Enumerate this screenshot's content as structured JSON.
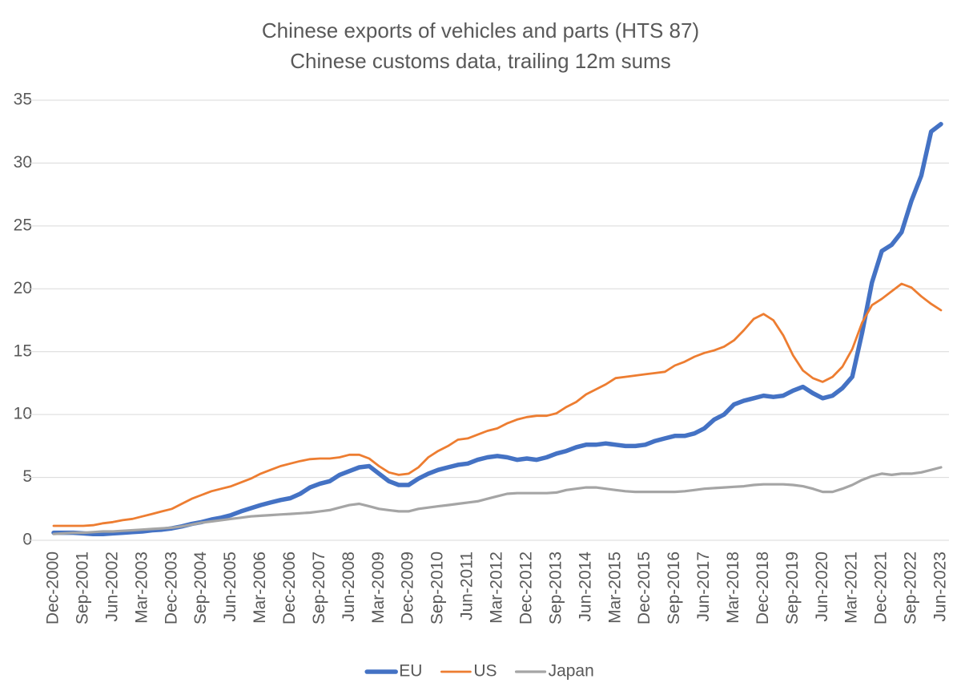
{
  "chart_data": {
    "type": "line",
    "title": "Chinese exports of vehicles and parts (HTS 87)",
    "subtitle": "Chinese customs data, trailing 12m sums",
    "categories": [
      "Dec-2000",
      null,
      null,
      "Sep-2001",
      null,
      null,
      "Jun-2002",
      null,
      null,
      "Mar-2003",
      null,
      null,
      "Dec-2003",
      null,
      null,
      "Sep-2004",
      null,
      null,
      "Jun-2005",
      null,
      null,
      "Mar-2006",
      null,
      null,
      "Dec-2006",
      null,
      null,
      "Sep-2007",
      null,
      null,
      "Jun-2008",
      null,
      null,
      "Mar-2009",
      null,
      null,
      "Dec-2009",
      null,
      null,
      "Sep-2010",
      null,
      null,
      "Jun-2011",
      null,
      null,
      "Mar-2012",
      null,
      null,
      "Dec-2012",
      null,
      null,
      "Sep-2013",
      null,
      null,
      "Jun-2014",
      null,
      null,
      "Mar-2015",
      null,
      null,
      "Dec-2015",
      null,
      null,
      "Sep-2016",
      null,
      null,
      "Jun-2017",
      null,
      null,
      "Mar-2018",
      null,
      null,
      "Dec-2018",
      null,
      null,
      "Sep-2019",
      null,
      null,
      "Jun-2020",
      null,
      null,
      "Mar-2021",
      null,
      null,
      "Dec-2021",
      null,
      null,
      "Sep-2022",
      null,
      null,
      "Jun-2023"
    ],
    "series": [
      {
        "name": "EU",
        "color": "#4472c4",
        "values": [
          0.6,
          0.6,
          0.6,
          0.55,
          0.5,
          0.5,
          0.55,
          0.6,
          0.65,
          0.7,
          0.8,
          0.85,
          0.95,
          1.1,
          1.3,
          1.45,
          1.65,
          1.8,
          2.0,
          2.3,
          2.55,
          2.8,
          3.0,
          3.2,
          3.35,
          3.7,
          4.2,
          4.5,
          4.7,
          5.2,
          5.5,
          5.8,
          5.9,
          5.3,
          4.7,
          4.4,
          4.4,
          4.9,
          5.3,
          5.6,
          5.8,
          6.0,
          6.1,
          6.4,
          6.6,
          6.7,
          6.6,
          6.4,
          6.5,
          6.4,
          6.6,
          6.9,
          7.1,
          7.4,
          7.6,
          7.6,
          7.7,
          7.6,
          7.5,
          7.5,
          7.6,
          7.9,
          8.1,
          8.3,
          8.3,
          8.5,
          8.9,
          9.6,
          10.0,
          10.8,
          11.1,
          11.3,
          11.5,
          11.4,
          11.5,
          11.9,
          12.2,
          11.7,
          11.3,
          11.5,
          12.1,
          13.0,
          16.5,
          20.5,
          23.0,
          23.5,
          24.5,
          27.0,
          29.0,
          32.5,
          33.1
        ]
      },
      {
        "name": "US",
        "color": "#ed7d31",
        "values": [
          1.15,
          1.15,
          1.15,
          1.15,
          1.2,
          1.35,
          1.45,
          1.6,
          1.7,
          1.9,
          2.1,
          2.3,
          2.5,
          2.9,
          3.3,
          3.6,
          3.9,
          4.1,
          4.3,
          4.6,
          4.9,
          5.3,
          5.6,
          5.9,
          6.1,
          6.3,
          6.45,
          6.5,
          6.5,
          6.6,
          6.8,
          6.8,
          6.5,
          5.9,
          5.4,
          5.2,
          5.3,
          5.8,
          6.6,
          7.1,
          7.5,
          8.0,
          8.1,
          8.4,
          8.7,
          8.9,
          9.3,
          9.6,
          9.8,
          9.9,
          9.9,
          10.1,
          10.6,
          11.0,
          11.6,
          12.0,
          12.4,
          12.9,
          13.0,
          13.1,
          13.2,
          13.3,
          13.4,
          13.9,
          14.2,
          14.6,
          14.9,
          15.1,
          15.4,
          15.9,
          16.7,
          17.6,
          18.0,
          17.5,
          16.3,
          14.7,
          13.5,
          12.9,
          12.6,
          13.0,
          13.8,
          15.2,
          17.3,
          18.7,
          19.2,
          19.8,
          20.4,
          20.1,
          19.4,
          18.8,
          18.3
        ]
      },
      {
        "name": "Japan",
        "color": "#a5a5a5",
        "values": [
          0.5,
          0.55,
          0.6,
          0.6,
          0.65,
          0.7,
          0.7,
          0.75,
          0.8,
          0.85,
          0.9,
          0.95,
          1.0,
          1.1,
          1.25,
          1.4,
          1.5,
          1.6,
          1.7,
          1.8,
          1.9,
          1.95,
          2.0,
          2.05,
          2.1,
          2.15,
          2.2,
          2.3,
          2.4,
          2.6,
          2.8,
          2.9,
          2.7,
          2.5,
          2.4,
          2.3,
          2.3,
          2.5,
          2.6,
          2.7,
          2.8,
          2.9,
          3.0,
          3.1,
          3.3,
          3.5,
          3.7,
          3.75,
          3.75,
          3.75,
          3.75,
          3.8,
          4.0,
          4.1,
          4.2,
          4.2,
          4.1,
          4.0,
          3.9,
          3.85,
          3.85,
          3.85,
          3.85,
          3.85,
          3.9,
          4.0,
          4.1,
          4.15,
          4.2,
          4.25,
          4.3,
          4.4,
          4.45,
          4.45,
          4.45,
          4.4,
          4.3,
          4.1,
          3.85,
          3.85,
          4.1,
          4.4,
          4.8,
          5.1,
          5.3,
          5.2,
          5.3,
          5.3,
          5.4,
          5.6,
          5.8
        ]
      }
    ],
    "ylim": [
      0,
      35
    ],
    "yticks": [
      0,
      5,
      10,
      15,
      20,
      25,
      30,
      35
    ],
    "grid": true,
    "legend": "bottom"
  }
}
